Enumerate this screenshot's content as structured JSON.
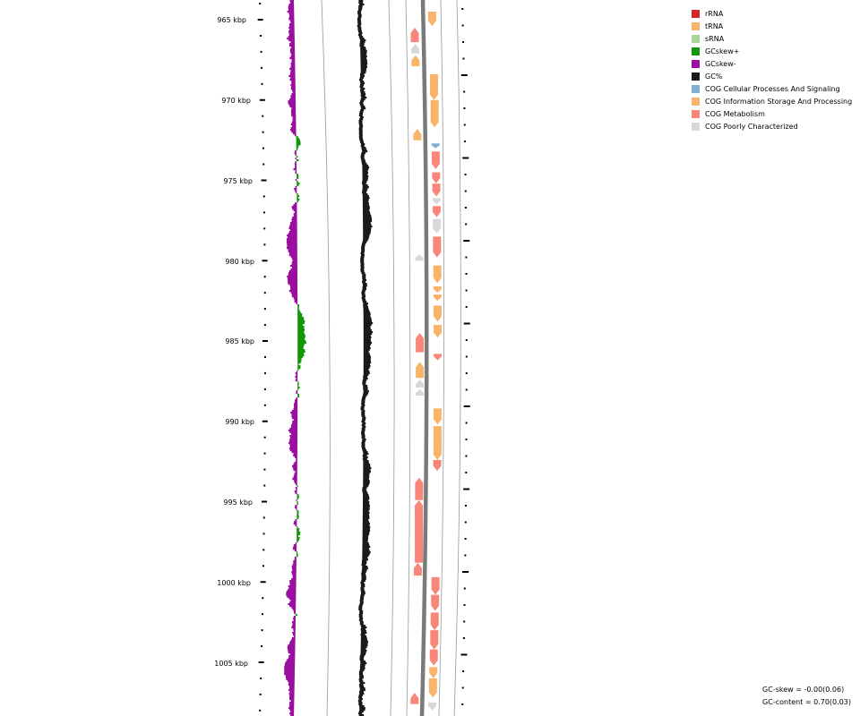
{
  "legend": {
    "items": [
      {
        "label": "rRNA",
        "color": "#d62728"
      },
      {
        "label": "tRNA",
        "color": "#f8b469"
      },
      {
        "label": "sRNA",
        "color": "#a7d897"
      },
      {
        "label": "GCskew+",
        "color": "#14960a"
      },
      {
        "label": "GCskew-",
        "color": "#9a0fa0"
      },
      {
        "label": "GC%",
        "color": "#1a1a1a"
      },
      {
        "label": "COG Cellular Processes And Signaling",
        "color": "#7fb0d2"
      },
      {
        "label": "COG Information Storage And Processing",
        "color": "#f8b469"
      },
      {
        "label": "COG Metabolism",
        "color": "#f8877a"
      },
      {
        "label": "COG Poorly Characterized",
        "color": "#d8d8d8"
      }
    ]
  },
  "axis": {
    "labels": [
      "965 kbp",
      "970 kbp",
      "975 kbp",
      "980 kbp",
      "985 kbp",
      "990 kbp",
      "995 kbp",
      "1000 kbp",
      "1005 kbp"
    ]
  },
  "stats": {
    "gc_skew": "GC-skew = -0.00(0.06)",
    "gc_content": "GC-content = 0.70(0.03)"
  },
  "features": {
    "forward": [
      {
        "start": 964.5,
        "end": 965.4,
        "cog": "tRNA"
      },
      {
        "start": 968.4,
        "end": 970.0,
        "cog": "tRNA"
      },
      {
        "start": 970.0,
        "end": 971.7,
        "cog": "tRNA"
      },
      {
        "start": 972.7,
        "end": 973.0,
        "cog": "COG Cellular Processes And Signaling"
      },
      {
        "start": 973.2,
        "end": 974.3,
        "cog": "COG Metabolism"
      },
      {
        "start": 974.5,
        "end": 975.2,
        "cog": "COG Metabolism"
      },
      {
        "start": 975.2,
        "end": 976.0,
        "cog": "COG Metabolism"
      },
      {
        "start": 976.1,
        "end": 976.5,
        "cog": "COG Poorly Characterized"
      },
      {
        "start": 976.6,
        "end": 977.3,
        "cog": "COG Metabolism"
      },
      {
        "start": 977.4,
        "end": 978.3,
        "cog": "COG Poorly Characterized"
      },
      {
        "start": 978.5,
        "end": 979.8,
        "cog": "COG Metabolism"
      },
      {
        "start": 980.3,
        "end": 981.4,
        "cog": "tRNA"
      },
      {
        "start": 981.6,
        "end": 982.0,
        "cog": "tRNA"
      },
      {
        "start": 982.1,
        "end": 982.5,
        "cog": "tRNA"
      },
      {
        "start": 982.8,
        "end": 983.8,
        "cog": "tRNA"
      },
      {
        "start": 984.0,
        "end": 984.8,
        "cog": "tRNA"
      },
      {
        "start": 985.8,
        "end": 986.2,
        "cog": "COG Metabolism"
      },
      {
        "start": 989.2,
        "end": 990.2,
        "cog": "tRNA"
      },
      {
        "start": 990.3,
        "end": 992.4,
        "cog": "tRNA"
      },
      {
        "start": 992.4,
        "end": 993.1,
        "cog": "COG Metabolism"
      },
      {
        "start": 999.7,
        "end": 1000.8,
        "cog": "COG Metabolism"
      },
      {
        "start": 1000.8,
        "end": 1001.8,
        "cog": "COG Metabolism"
      },
      {
        "start": 1001.9,
        "end": 1003.0,
        "cog": "COG Metabolism"
      },
      {
        "start": 1003.0,
        "end": 1004.2,
        "cog": "COG Metabolism"
      },
      {
        "start": 1004.2,
        "end": 1005.2,
        "cog": "COG Metabolism"
      },
      {
        "start": 1005.3,
        "end": 1006.0,
        "cog": "tRNA"
      },
      {
        "start": 1006.0,
        "end": 1007.2,
        "cog": "tRNA"
      },
      {
        "start": 1007.5,
        "end": 1008.0,
        "cog": "COG Poorly Characterized"
      }
    ],
    "reverse": [
      {
        "start": 965.5,
        "end": 966.4,
        "cog": "COG Metabolism"
      },
      {
        "start": 966.5,
        "end": 967.1,
        "cog": "COG Poorly Characterized"
      },
      {
        "start": 967.2,
        "end": 967.9,
        "cog": "tRNA"
      },
      {
        "start": 971.8,
        "end": 972.5,
        "cog": "tRNA"
      },
      {
        "start": 979.6,
        "end": 980.0,
        "cog": "COG Poorly Characterized"
      },
      {
        "start": 984.5,
        "end": 985.7,
        "cog": "COG Metabolism"
      },
      {
        "start": 986.3,
        "end": 987.3,
        "cog": "tRNA"
      },
      {
        "start": 987.4,
        "end": 987.9,
        "cog": "COG Poorly Characterized"
      },
      {
        "start": 988.0,
        "end": 988.4,
        "cog": "COG Poorly Characterized"
      },
      {
        "start": 993.5,
        "end": 994.9,
        "cog": "COG Metabolism"
      },
      {
        "start": 994.9,
        "end": 998.8,
        "cog": "COG Metabolism"
      },
      {
        "start": 998.8,
        "end": 999.6,
        "cog": "COG Metabolism"
      },
      {
        "start": 1006.9,
        "end": 1007.6,
        "cog": "COG Metabolism"
      }
    ]
  }
}
